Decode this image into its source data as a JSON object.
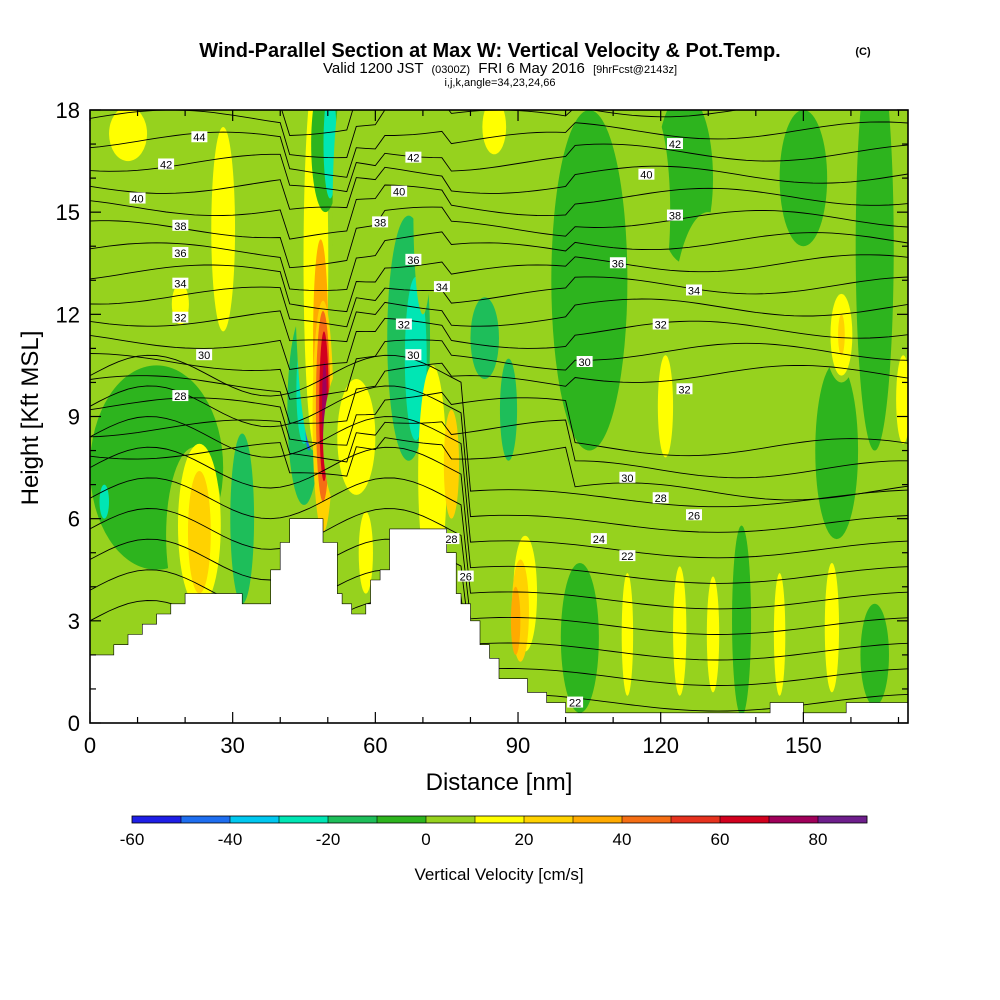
{
  "chart_data": {
    "type": "heatmap",
    "title": "Wind-Parallel Section at Max W: Vertical Velocity & Pot.Temp.",
    "copyright": "(C)",
    "subtitle_main": "Valid 1200 JST",
    "subtitle_utc": "(0300Z)",
    "subtitle_date": "FRI 6 May 2016",
    "subtitle_fcst": "[9hrFcst@2143z]",
    "subtitle2": "i,j,k,angle=34,23,24,66",
    "xlabel": "Distance [nm]",
    "ylabel": "Height [Kft MSL]",
    "xlim": [
      0,
      172
    ],
    "ylim": [
      0,
      18
    ],
    "xticks": [
      0,
      30,
      60,
      90,
      120,
      150
    ],
    "yticks": [
      0,
      3,
      6,
      9,
      12,
      15,
      18
    ],
    "colorbar": {
      "label": "Vertical Velocity [cm/s]",
      "ticks": [
        -60,
        -40,
        -20,
        0,
        20,
        40,
        60,
        80
      ],
      "min": -60,
      "max": 90,
      "step": 10,
      "colors": [
        "#1e1ee6",
        "#1e6ef0",
        "#00c8f0",
        "#00e6b4",
        "#1ebe5a",
        "#2db41e",
        "#96d21e",
        "#ffff00",
        "#ffd200",
        "#ffaa00",
        "#f56e14",
        "#e6321e",
        "#d2001e",
        "#a0005a",
        "#6e1e8c"
      ]
    },
    "contour_labels": [
      {
        "value": "44",
        "x": 23,
        "y": 17.2
      },
      {
        "value": "42",
        "x": 16,
        "y": 16.4
      },
      {
        "value": "40",
        "x": 10,
        "y": 15.4
      },
      {
        "value": "38",
        "x": 19,
        "y": 14.6
      },
      {
        "value": "36",
        "x": 19,
        "y": 13.8
      },
      {
        "value": "34",
        "x": 19,
        "y": 12.9
      },
      {
        "value": "32",
        "x": 19,
        "y": 11.9
      },
      {
        "value": "30",
        "x": 24,
        "y": 10.8
      },
      {
        "value": "28",
        "x": 19,
        "y": 9.6
      },
      {
        "value": "42",
        "x": 68,
        "y": 16.6
      },
      {
        "value": "40",
        "x": 65,
        "y": 15.6
      },
      {
        "value": "38",
        "x": 61,
        "y": 14.7
      },
      {
        "value": "36",
        "x": 68,
        "y": 13.6
      },
      {
        "value": "34",
        "x": 74,
        "y": 12.8
      },
      {
        "value": "32",
        "x": 66,
        "y": 11.7
      },
      {
        "value": "30",
        "x": 68,
        "y": 10.8
      },
      {
        "value": "42",
        "x": 123,
        "y": 17.0
      },
      {
        "value": "40",
        "x": 117,
        "y": 16.1
      },
      {
        "value": "38",
        "x": 123,
        "y": 14.9
      },
      {
        "value": "36",
        "x": 111,
        "y": 13.5
      },
      {
        "value": "34",
        "x": 127,
        "y": 12.7
      },
      {
        "value": "32",
        "x": 120,
        "y": 11.7
      },
      {
        "value": "30",
        "x": 104,
        "y": 10.6
      },
      {
        "value": "32",
        "x": 125,
        "y": 9.8
      },
      {
        "value": "30",
        "x": 113,
        "y": 7.2
      },
      {
        "value": "28",
        "x": 120,
        "y": 6.6
      },
      {
        "value": "26",
        "x": 127,
        "y": 6.1
      },
      {
        "value": "24",
        "x": 107,
        "y": 5.4
      },
      {
        "value": "22",
        "x": 113,
        "y": 4.9
      },
      {
        "value": "28",
        "x": 76,
        "y": 5.4
      },
      {
        "value": "26",
        "x": 79,
        "y": 4.3
      },
      {
        "value": "22",
        "x": 102,
        "y": 0.6
      }
    ]
  }
}
